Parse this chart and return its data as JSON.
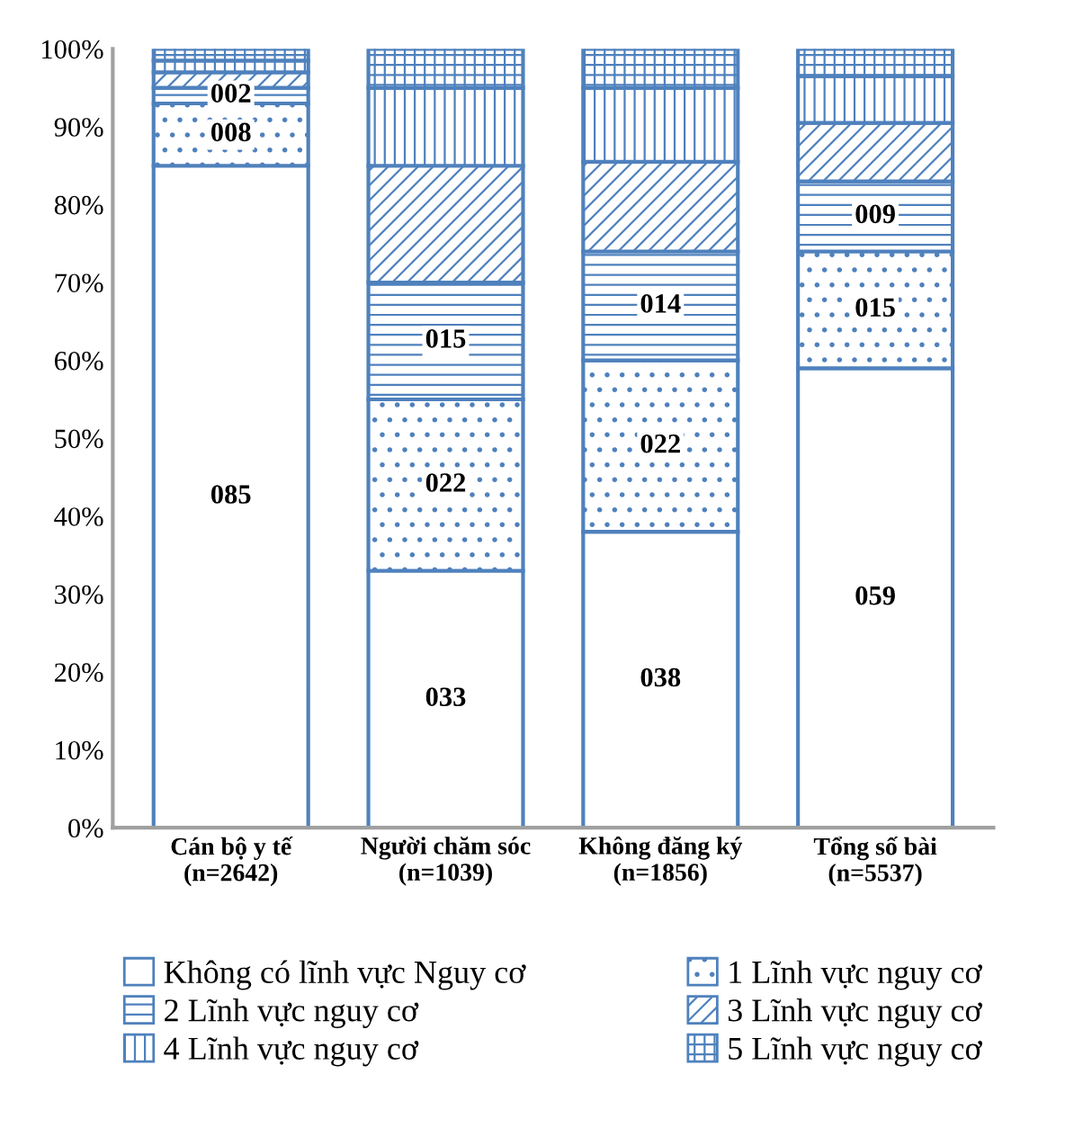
{
  "chart_data": {
    "type": "bar",
    "stacked": true,
    "categories": [
      "Cán bộ y tế\n(n=2642)",
      "Người chăm sóc\n(n=1039)",
      "Không đăng ký\n(n=1856)",
      "Tổng số bài\n(n=5537)"
    ],
    "series": [
      {
        "name": "Không có lĩnh vực Nguy cơ",
        "color": "#4f81bd",
        "values": [
          85,
          33,
          38,
          59
        ],
        "value_labels": [
          "085",
          "033",
          "038",
          "059"
        ]
      },
      {
        "name": "1 Lĩnh vực nguy cơ",
        "color": "#4f81bd",
        "values": [
          8,
          22,
          22,
          15
        ],
        "value_labels": [
          "008",
          "022",
          "022",
          "015"
        ]
      },
      {
        "name": "2 Lĩnh vực nguy cơ",
        "color": "#4f81bd",
        "values": [
          2,
          15,
          14,
          9
        ],
        "value_labels": [
          "002",
          "015",
          "014",
          "009"
        ]
      },
      {
        "name": "3 Lĩnh vực nguy cơ",
        "color": "#4f81bd",
        "values": [
          2,
          15,
          11.5,
          7.5
        ]
      },
      {
        "name": "4 Lĩnh vực nguy cơ",
        "color": "#4f81bd",
        "values": [
          1.5,
          10,
          9.5,
          6
        ]
      },
      {
        "name": "5 Lĩnh vực nguy cơ",
        "color": "#4f81bd",
        "values": [
          1.5,
          5,
          5,
          3.5
        ]
      }
    ],
    "ylim": [
      0,
      100
    ],
    "yticks": [
      {
        "value": 0,
        "label": "0%"
      },
      {
        "value": 10,
        "label": "10%"
      },
      {
        "value": 20,
        "label": "20%"
      },
      {
        "value": 30,
        "label": "30%"
      },
      {
        "value": 40,
        "label": "40%"
      },
      {
        "value": 50,
        "label": "50%"
      },
      {
        "value": 60,
        "label": "60%"
      },
      {
        "value": 70,
        "label": "70%"
      },
      {
        "value": 80,
        "label": "80%"
      },
      {
        "value": 90,
        "label": "90%"
      },
      {
        "value": 100,
        "label": "100%"
      }
    ],
    "grid": false,
    "legend": "bottom"
  }
}
